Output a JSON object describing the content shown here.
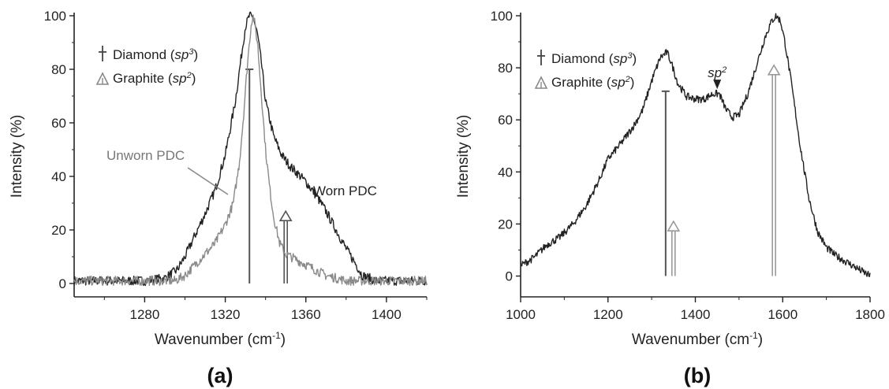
{
  "chart_data": [
    {
      "type": "line",
      "panel_label": "(a)",
      "xlabel": "Wavenumber (cm",
      "xlabel_sup": "-1",
      "xlabel_end": ")",
      "ylabel": "Intensity (%)",
      "xlim": [
        1245,
        1420
      ],
      "ylim": [
        -5,
        100
      ],
      "xticks": [
        1280,
        1320,
        1360,
        1400
      ],
      "yticks": [
        0,
        20,
        40,
        60,
        80,
        100
      ],
      "legend": {
        "position": "top-left",
        "entries": [
          {
            "name": "Diamond",
            "sup": "sp",
            "sup_n": "3",
            "marker": "cross"
          },
          {
            "name": "Graphite",
            "sup": "sp",
            "sup_n": "2",
            "marker": "triangle"
          }
        ]
      },
      "series": [
        {
          "name": "Worn PDC",
          "color": "#222222",
          "x": [
            1245,
            1260,
            1280,
            1290,
            1296,
            1300,
            1305,
            1310,
            1315,
            1320,
            1325,
            1328,
            1330,
            1332,
            1334,
            1336,
            1338,
            1340,
            1344,
            1348,
            1352,
            1356,
            1360,
            1365,
            1370,
            1375,
            1380,
            1385,
            1388,
            1395,
            1405,
            1420
          ],
          "y": [
            1,
            1,
            1,
            2,
            5,
            10,
            18,
            26,
            35,
            48,
            68,
            85,
            96,
            100,
            99,
            93,
            82,
            68,
            55,
            48,
            44,
            41,
            38,
            33,
            27,
            20,
            13,
            7,
            3,
            1,
            1,
            1
          ]
        },
        {
          "name": "Unworn PDC",
          "color": "#8a8a8a",
          "x": [
            1245,
            1280,
            1295,
            1300,
            1305,
            1310,
            1315,
            1320,
            1324,
            1327,
            1329,
            1331,
            1333,
            1334,
            1336,
            1338,
            1340,
            1342,
            1344,
            1347,
            1350,
            1355,
            1360,
            1365,
            1370,
            1380,
            1390,
            1420
          ],
          "y": [
            1,
            1,
            1,
            3,
            7,
            11,
            15,
            22,
            30,
            45,
            62,
            82,
            98,
            100,
            90,
            70,
            50,
            36,
            25,
            15,
            11,
            9,
            7,
            5,
            3,
            1,
            1,
            1
          ]
        }
      ],
      "reference_lines": [
        {
          "type": "Diamond",
          "x": 1332,
          "height": 80
        },
        {
          "type": "Graphite",
          "x": 1350,
          "height": 27
        }
      ],
      "annotations": [
        {
          "text": "Unworn PDC",
          "color": "#8a8a8a"
        },
        {
          "text": "Worn PDC",
          "color": "#222222"
        }
      ]
    },
    {
      "type": "line",
      "panel_label": "(b)",
      "xlabel": "Wavenumber (cm",
      "xlabel_sup": "-1",
      "xlabel_end": ")",
      "ylabel": "Intensity (%)",
      "xlim": [
        1000,
        1800
      ],
      "ylim": [
        -8,
        100
      ],
      "xticks": [
        1000,
        1200,
        1400,
        1600,
        1800
      ],
      "yticks": [
        0,
        20,
        40,
        60,
        80,
        100
      ],
      "legend": {
        "position": "top-left",
        "entries": [
          {
            "name": "Diamond",
            "sup": "sp",
            "sup_n": "3",
            "marker": "cross"
          },
          {
            "name": "Graphite",
            "sup": "sp",
            "sup_n": "2",
            "marker": "triangle"
          }
        ]
      },
      "series": [
        {
          "color": "#222222",
          "x": [
            1000,
            1030,
            1060,
            1090,
            1120,
            1150,
            1180,
            1200,
            1230,
            1260,
            1280,
            1300,
            1320,
            1335,
            1345,
            1360,
            1380,
            1400,
            1420,
            1440,
            1455,
            1470,
            1485,
            1500,
            1520,
            1540,
            1560,
            1575,
            1585,
            1595,
            1605,
            1620,
            1640,
            1660,
            1680,
            1700,
            1720,
            1750,
            1780,
            1800
          ],
          "y": [
            4,
            7,
            12,
            15,
            20,
            27,
            37,
            45,
            51,
            58,
            64,
            75,
            84,
            86,
            82,
            74,
            69,
            68,
            68,
            70,
            70,
            64,
            61,
            62,
            70,
            81,
            92,
            98,
            100,
            98,
            90,
            74,
            50,
            30,
            17,
            11,
            8,
            5,
            2,
            0
          ]
        }
      ],
      "reference_lines": [
        {
          "type": "Diamond",
          "x": 1332,
          "height": 71
        },
        {
          "type": "Graphite",
          "x": 1350,
          "height": 21
        },
        {
          "type": "Graphite",
          "x": 1580,
          "height": 81
        }
      ],
      "annotations": [
        {
          "text": "sp",
          "sup": "2",
          "x": 1450,
          "arrow_to": 70
        }
      ]
    }
  ]
}
